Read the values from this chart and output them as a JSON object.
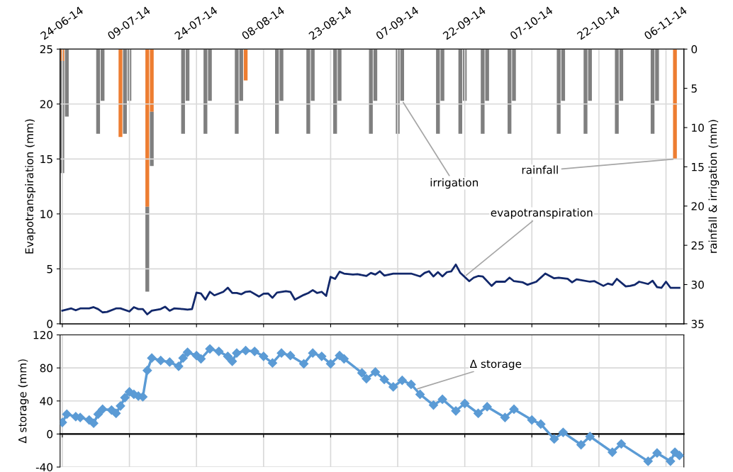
{
  "chart_data": [
    {
      "type": "line",
      "ylabel": "Evapotranspiration (mm)",
      "y2label": "rainfall & irrigation (mm)",
      "xlim": [
        "2014-06-23T12:00",
        "2014-11-10"
      ],
      "xticks": [
        {
          "value": "2014-06-24",
          "label": "24-06-14"
        },
        {
          "value": "2014-07-09",
          "label": "09-07-14"
        },
        {
          "value": "2014-07-24",
          "label": "24-07-14"
        },
        {
          "value": "2014-08-08",
          "label": "08-08-14"
        },
        {
          "value": "2014-08-23",
          "label": "23-08-14"
        },
        {
          "value": "2014-09-07",
          "label": "07-09-14"
        },
        {
          "value": "2014-09-22",
          "label": "22-09-14"
        },
        {
          "value": "2014-10-07",
          "label": "07-10-14"
        },
        {
          "value": "2014-10-22",
          "label": "22-10-14"
        },
        {
          "value": "2014-11-06",
          "label": "06-11-14"
        }
      ],
      "ylim": [
        0,
        25
      ],
      "yticks": [
        0,
        5,
        10,
        15,
        20,
        25
      ],
      "y2lim": [
        35,
        0
      ],
      "y2ticks": [
        0,
        5,
        10,
        15,
        20,
        25,
        30,
        35
      ],
      "grid": true,
      "stacked": true,
      "marker": "none",
      "line_style": "solid",
      "series": [
        {
          "type": "line",
          "color": "#12286b",
          "x": [
            "2014-06-24",
            "2014-06-26",
            "2014-06-27",
            "2014-06-28",
            "2014-06-30",
            "2014-07-01",
            "2014-07-02",
            "2014-07-03",
            "2014-07-04",
            "2014-07-06",
            "2014-07-07",
            "2014-07-09",
            "2014-07-10",
            "2014-07-11",
            "2014-07-12",
            "2014-07-13",
            "2014-07-14",
            "2014-07-16",
            "2014-07-17",
            "2014-07-18",
            "2014-07-19",
            "2014-07-21",
            "2014-07-22",
            "2014-07-23",
            "2014-07-24",
            "2014-07-25",
            "2014-07-26",
            "2014-07-27",
            "2014-07-28",
            "2014-07-30",
            "2014-07-31",
            "2014-08-01",
            "2014-08-02",
            "2014-08-03",
            "2014-08-04",
            "2014-08-05",
            "2014-08-07",
            "2014-08-08",
            "2014-08-09",
            "2014-08-10",
            "2014-08-11",
            "2014-08-13",
            "2014-08-14",
            "2014-08-15",
            "2014-08-17",
            "2014-08-18",
            "2014-08-19",
            "2014-08-20",
            "2014-08-21",
            "2014-08-22",
            "2014-08-23",
            "2014-08-24",
            "2014-08-25",
            "2014-08-26",
            "2014-08-28",
            "2014-08-29",
            "2014-08-31",
            "2014-09-01",
            "2014-09-02",
            "2014-09-03",
            "2014-09-04",
            "2014-09-06",
            "2014-09-08",
            "2014-09-10",
            "2014-09-12",
            "2014-09-13",
            "2014-09-14",
            "2014-09-15",
            "2014-09-16",
            "2014-09-17",
            "2014-09-18",
            "2014-09-19",
            "2014-09-20",
            "2014-09-21",
            "2014-09-23",
            "2014-09-24",
            "2014-09-25",
            "2014-09-26",
            "2014-09-28",
            "2014-09-29",
            "2014-10-01",
            "2014-10-02",
            "2014-10-03",
            "2014-10-05",
            "2014-10-06",
            "2014-10-08",
            "2014-10-10",
            "2014-10-12",
            "2014-10-13",
            "2014-10-15",
            "2014-10-16",
            "2014-10-17",
            "2014-10-20",
            "2014-10-21",
            "2014-10-23",
            "2014-10-24",
            "2014-10-25",
            "2014-10-26",
            "2014-10-28",
            "2014-10-29",
            "2014-10-30",
            "2014-10-31",
            "2014-11-02",
            "2014-11-03",
            "2014-11-04",
            "2014-11-05",
            "2014-11-06",
            "2014-11-07",
            "2014-11-09"
          ],
          "values": [
            1.19,
            1.4,
            1.23,
            1.4,
            1.4,
            1.51,
            1.34,
            1.04,
            1.08,
            1.4,
            1.4,
            1.12,
            1.51,
            1.34,
            1.34,
            0.86,
            1.19,
            1.34,
            1.55,
            1.19,
            1.4,
            1.34,
            1.29,
            1.34,
            2.84,
            2.76,
            2.2,
            2.91,
            2.59,
            2.91,
            3.28,
            2.8,
            2.8,
            2.69,
            2.91,
            2.95,
            2.48,
            2.74,
            2.76,
            2.37,
            2.84,
            2.97,
            2.91,
            2.2,
            2.63,
            2.8,
            3.06,
            2.8,
            2.91,
            2.54,
            4.27,
            4.09,
            4.74,
            4.57,
            4.48,
            4.52,
            4.35,
            4.63,
            4.48,
            4.78,
            4.39,
            4.57,
            4.57,
            4.57,
            4.31,
            4.63,
            4.78,
            4.31,
            4.7,
            4.31,
            4.7,
            4.78,
            5.39,
            4.63,
            3.88,
            4.2,
            4.35,
            4.31,
            3.45,
            3.83,
            3.83,
            4.2,
            3.88,
            3.77,
            3.55,
            3.83,
            4.57,
            4.14,
            4.2,
            4.09,
            3.77,
            4.05,
            3.83,
            3.88,
            3.45,
            3.66,
            3.55,
            4.09,
            3.4,
            3.45,
            3.55,
            3.83,
            3.62,
            3.92,
            3.34,
            3.28,
            3.83,
            3.28,
            3.28
          ]
        },
        {
          "type": "bar",
          "axis": "y2",
          "color": "#ed7d31",
          "x": [
            "2014-06-24",
            "2014-06-25",
            "2014-07-02",
            "2014-07-03",
            "2014-07-07",
            "2014-07-08",
            "2014-07-09",
            "2014-07-13",
            "2014-07-14",
            "2014-07-21",
            "2014-07-22",
            "2014-07-26",
            "2014-07-27",
            "2014-08-02",
            "2014-08-03",
            "2014-08-04",
            "2014-08-11",
            "2014-08-12",
            "2014-08-18",
            "2014-08-19",
            "2014-08-24",
            "2014-08-25",
            "2014-09-01",
            "2014-09-02",
            "2014-09-07",
            "2014-09-08",
            "2014-09-16",
            "2014-09-17",
            "2014-09-21",
            "2014-09-22",
            "2014-09-26",
            "2014-09-27",
            "2014-10-02",
            "2014-10-03",
            "2014-10-13",
            "2014-10-14",
            "2014-10-19",
            "2014-10-20",
            "2014-10-26",
            "2014-10-27",
            "2014-11-03",
            "2014-11-04",
            "2014-11-08"
          ],
          "values": [
            1.5,
            null,
            null,
            null,
            11.2,
            null,
            null,
            20.1,
            8.0,
            null,
            null,
            null,
            null,
            null,
            null,
            4.0,
            null,
            null,
            null,
            null,
            null,
            null,
            null,
            null,
            null,
            null,
            null,
            null,
            null,
            null,
            null,
            null,
            null,
            null,
            null,
            null,
            null,
            null,
            null,
            null,
            null,
            null,
            14.0
          ]
        },
        {
          "type": "bar",
          "axis": "y2",
          "color": "#7f7f7f",
          "x": [
            "2014-06-24",
            "2014-06-25",
            "2014-07-02",
            "2014-07-03",
            "2014-07-07",
            "2014-07-08",
            "2014-07-09",
            "2014-07-13",
            "2014-07-14",
            "2014-07-21",
            "2014-07-22",
            "2014-07-26",
            "2014-07-27",
            "2014-08-02",
            "2014-08-03",
            "2014-08-04",
            "2014-08-11",
            "2014-08-12",
            "2014-08-18",
            "2014-08-19",
            "2014-08-24",
            "2014-08-25",
            "2014-09-01",
            "2014-09-02",
            "2014-09-07",
            "2014-09-08",
            "2014-09-16",
            "2014-09-17",
            "2014-09-21",
            "2014-09-22",
            "2014-09-26",
            "2014-09-27",
            "2014-10-02",
            "2014-10-03",
            "2014-10-13",
            "2014-10-14",
            "2014-10-19",
            "2014-10-20",
            "2014-10-26",
            "2014-10-27",
            "2014-11-03",
            "2014-11-04"
          ],
          "values": [
            14.3,
            8.6,
            10.8,
            6.6,
            null,
            10.8,
            6.6,
            10.8,
            6.9,
            10.8,
            6.6,
            10.8,
            6.6,
            10.8,
            6.6,
            null,
            10.8,
            6.6,
            10.8,
            6.6,
            10.8,
            6.6,
            10.8,
            6.6,
            10.8,
            6.6,
            10.8,
            6.6,
            10.8,
            6.6,
            10.8,
            6.6,
            10.8,
            6.6,
            10.8,
            6.6,
            10.8,
            6.6,
            10.8,
            6.6,
            10.8,
            6.6
          ]
        }
      ],
      "annotations": [
        {
          "text": "irrigation",
          "x": "2014-09-08",
          "y": 20.3
        },
        {
          "text": "evapotranspiration",
          "x": "2014-09-22",
          "y": 4.3
        },
        {
          "text": "rainfall",
          "x": "2014-11-08",
          "y": 15
        }
      ]
    },
    {
      "type": "line",
      "ylabel": "Δ storage (mm)",
      "xlim": [
        "2014-06-23T12:00",
        "2014-11-10"
      ],
      "xticks": [
        {
          "value": "2014-06-24",
          "label": null
        },
        {
          "value": "2014-07-09",
          "label": null
        },
        {
          "value": "2014-07-24",
          "label": null
        },
        {
          "value": "2014-08-08",
          "label": null
        },
        {
          "value": "2014-08-23",
          "label": null
        },
        {
          "value": "2014-09-07",
          "label": null
        },
        {
          "value": "2014-09-22",
          "label": null
        },
        {
          "value": "2014-10-07",
          "label": null
        },
        {
          "value": "2014-10-22",
          "label": null
        },
        {
          "value": "2014-11-06",
          "label": null
        }
      ],
      "ylim": [
        -40,
        120
      ],
      "yticks": [
        -40,
        0,
        40,
        80,
        120
      ],
      "tick_labels": "y",
      "grid": true,
      "marker": "diamond",
      "line_style": "solid",
      "series": [
        {
          "color": "#5b9bd5",
          "x": [
            "2014-06-24",
            "2014-06-25",
            "2014-06-27",
            "2014-06-28",
            "2014-06-30",
            "2014-07-01",
            "2014-07-02",
            "2014-07-03",
            "2014-07-05",
            "2014-07-06",
            "2014-07-07",
            "2014-07-08",
            "2014-07-09",
            "2014-07-10",
            "2014-07-11",
            "2014-07-12",
            "2014-07-13",
            "2014-07-14",
            "2014-07-16",
            "2014-07-18",
            "2014-07-20",
            "2014-07-21",
            "2014-07-22",
            "2014-07-24",
            "2014-07-25",
            "2014-07-27",
            "2014-07-29",
            "2014-07-31",
            "2014-08-01",
            "2014-08-02",
            "2014-08-04",
            "2014-08-06",
            "2014-08-08",
            "2014-08-10",
            "2014-08-12",
            "2014-08-14",
            "2014-08-17",
            "2014-08-19",
            "2014-08-21",
            "2014-08-23",
            "2014-08-25",
            "2014-08-26",
            "2014-08-30",
            "2014-08-31",
            "2014-09-02",
            "2014-09-04",
            "2014-09-06",
            "2014-09-08",
            "2014-09-10",
            "2014-09-12",
            "2014-09-15",
            "2014-09-17",
            "2014-09-20",
            "2014-09-22",
            "2014-09-25",
            "2014-09-27",
            "2014-10-01",
            "2014-10-03",
            "2014-10-07",
            "2014-10-09",
            "2014-10-12",
            "2014-10-14",
            "2014-10-18",
            "2014-10-20",
            "2014-10-25",
            "2014-10-27",
            "2014-11-02",
            "2014-11-04",
            "2014-11-07",
            "2014-11-08",
            "2014-11-09"
          ],
          "values": [
            14,
            24,
            21,
            20,
            17,
            13,
            24,
            30,
            29,
            25,
            34,
            44,
            51,
            48,
            46,
            45,
            77,
            92,
            89,
            87,
            82,
            92,
            99,
            95,
            91,
            103,
            100,
            94,
            88,
            98,
            101,
            100,
            94,
            86,
            98,
            95,
            85,
            98,
            94,
            85,
            95,
            91,
            74,
            67,
            75,
            66,
            57,
            65,
            60,
            48,
            35,
            42,
            28,
            37,
            25,
            33,
            20,
            30,
            17,
            12,
            -6,
            2,
            -13,
            -3,
            -22,
            -12,
            -33,
            -23,
            -33,
            -22,
            -26
          ]
        }
      ],
      "annotations": [
        {
          "text": "Δ storage",
          "x": "2014-09-11",
          "y": 54
        }
      ]
    }
  ]
}
